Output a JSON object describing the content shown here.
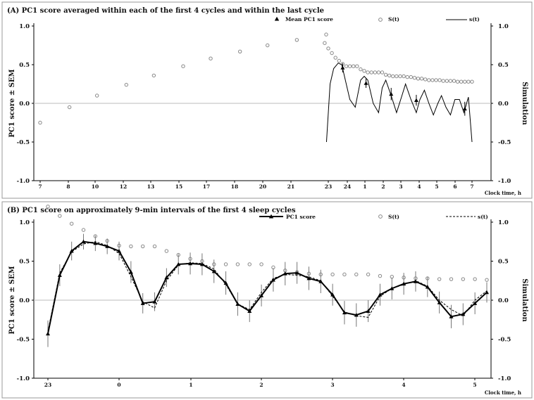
{
  "chart_data": [
    {
      "type": "scatter+line",
      "title": "(A) PC1 score averaged within each of the first 4 cycles and within the last cycle",
      "ylabel": "PC1 score ± SEM",
      "y2label": "Simulation",
      "xlabel": "Clock time, h",
      "ylim": [
        -1.0,
        1.0
      ],
      "y2lim": [
        -1.0,
        1.0
      ],
      "yticks": [
        "-1.0",
        "-0.5",
        "0.0",
        "0.5",
        "1.0"
      ],
      "y2ticks": [
        "-1.0",
        "-0.5",
        "0.0",
        "0.5",
        "1.0"
      ],
      "xticks": [
        "7",
        "8",
        "10",
        "12",
        "13",
        "15",
        "17",
        "18",
        "20",
        "21",
        "23",
        "24",
        "1",
        "2",
        "3",
        "4",
        "5",
        "6",
        "7"
      ],
      "legend": [
        "Mean PC1 score",
        "S(t)",
        "s(t)"
      ],
      "legend_position": "top",
      "series": [
        {
          "name": "S(t)",
          "marker": "circle",
          "x_clock": [
            7,
            8.6,
            10.1,
            11.7,
            13.2,
            14.8,
            16.3,
            17.9,
            19.4,
            21.0,
            22.6,
            22.8,
            23.0,
            23.2,
            23.4,
            23.6,
            23.8,
            24.0,
            24.2,
            24.4,
            24.6,
            24.8,
            25.0,
            25.2,
            25.4,
            25.6,
            25.8,
            26.0,
            26.2,
            26.4,
            26.6,
            26.8,
            27.0,
            27.2,
            27.4,
            27.6,
            27.8,
            28.0,
            28.2,
            28.4,
            28.6,
            28.8,
            29.0,
            29.2,
            29.4,
            29.6,
            29.8,
            30.0,
            30.2,
            30.4,
            30.6,
            30.8,
            31.0
          ],
          "y": [
            -0.25,
            -0.05,
            0.1,
            0.24,
            0.36,
            0.48,
            0.58,
            0.67,
            0.75,
            0.82,
            0.89,
            0.78,
            0.71,
            0.65,
            0.59,
            0.55,
            0.51,
            0.48,
            0.48,
            0.48,
            0.48,
            0.44,
            0.42,
            0.4,
            0.4,
            0.4,
            0.4,
            0.4,
            0.37,
            0.36,
            0.35,
            0.35,
            0.35,
            0.35,
            0.34,
            0.34,
            0.33,
            0.32,
            0.32,
            0.31,
            0.3,
            0.3,
            0.3,
            0.3,
            0.29,
            0.29,
            0.29,
            0.29,
            0.28,
            0.28,
            0.28,
            0.28,
            0.28
          ]
        },
        {
          "name": "s(t)",
          "marker": "none",
          "x_clock": [
            22.9,
            23.1,
            23.3,
            23.55,
            23.75,
            23.95,
            24.2,
            24.5,
            24.8,
            25.0,
            25.2,
            25.5,
            25.8,
            26.0,
            26.2,
            26.5,
            26.8,
            27.1,
            27.3,
            27.6,
            27.9,
            28.1,
            28.35,
            28.6,
            28.85,
            29.1,
            29.3,
            29.55,
            29.8,
            30.05,
            30.3,
            30.55,
            30.8,
            31.0
          ],
          "y": [
            -0.5,
            0.25,
            0.45,
            0.52,
            0.5,
            0.3,
            0.05,
            -0.05,
            0.3,
            0.35,
            0.3,
            0.0,
            -0.12,
            0.2,
            0.3,
            0.1,
            -0.12,
            0.1,
            0.25,
            0.05,
            -0.12,
            0.05,
            0.17,
            0.0,
            -0.15,
            0.0,
            0.1,
            -0.05,
            -0.15,
            0.05,
            0.05,
            -0.12,
            0.08,
            -0.5
          ]
        },
        {
          "name": "Mean PC1 score",
          "marker": "triangle",
          "x_clock": [
            23.8,
            25.1,
            26.5,
            27.9,
            30.6
          ],
          "y": [
            0.46,
            0.26,
            0.12,
            0.04,
            -0.07
          ],
          "sem": [
            0.06,
            0.06,
            0.08,
            0.07,
            0.09
          ]
        }
      ]
    },
    {
      "type": "line",
      "title": "(B) PC1 score on approximately 9-min intervals of the first 4 sleep cycles",
      "ylabel": "PC1 score ± SEM",
      "y2label": "Simulation",
      "xlabel": "Clock time, h",
      "ylim": [
        -1.0,
        1.0
      ],
      "y2lim": [
        -1.0,
        1.0
      ],
      "yticks": [
        "-1.0",
        "-0.5",
        "0.0",
        "0.5",
        "1.0"
      ],
      "y2ticks": [
        "-1.0",
        "-0.5",
        "0.0",
        "0.5",
        "1.0"
      ],
      "xticks": [
        "23",
        "0",
        "1",
        "2",
        "3",
        "4",
        "5"
      ],
      "legend": [
        "PC1 score",
        "S(t)",
        "s(t)"
      ],
      "legend_position": "top",
      "series": [
        {
          "name": "PC1 score",
          "marker": "triangle",
          "y": [
            -0.43,
            0.32,
            0.63,
            0.75,
            0.73,
            0.69,
            0.63,
            0.36,
            -0.04,
            -0.02,
            0.29,
            0.46,
            0.47,
            0.46,
            0.37,
            0.22,
            -0.05,
            -0.14,
            0.06,
            0.26,
            0.34,
            0.35,
            0.28,
            0.24,
            0.07,
            -0.16,
            -0.19,
            -0.14,
            0.07,
            0.15,
            0.21,
            0.24,
            0.17,
            -0.03,
            -0.21,
            -0.18,
            -0.04,
            0.1
          ],
          "sem": [
            0.17,
            0.14,
            0.12,
            0.1,
            0.1,
            0.1,
            0.12,
            0.14,
            0.13,
            0.12,
            0.12,
            0.13,
            0.14,
            0.14,
            0.15,
            0.15,
            0.15,
            0.14,
            0.14,
            0.15,
            0.15,
            0.14,
            0.15,
            0.15,
            0.14,
            0.15,
            0.15,
            0.14,
            0.14,
            0.14,
            0.14,
            0.13,
            0.13,
            0.14,
            0.15,
            0.14,
            0.14,
            0.13
          ]
        },
        {
          "name": "s(t)",
          "marker": "none",
          "y": [
            -0.4,
            0.35,
            0.62,
            0.72,
            0.75,
            0.7,
            0.6,
            0.3,
            -0.02,
            -0.1,
            0.25,
            0.45,
            0.48,
            0.47,
            0.4,
            0.2,
            -0.05,
            -0.12,
            0.1,
            0.28,
            0.33,
            0.32,
            0.3,
            0.25,
            0.05,
            -0.15,
            -0.2,
            -0.22,
            0.05,
            0.15,
            0.2,
            0.25,
            0.18,
            0.0,
            -0.12,
            -0.2,
            0.0,
            0.12
          ]
        },
        {
          "name": "S(t)",
          "marker": "circle",
          "y": [
            1.2,
            1.08,
            0.98,
            0.9,
            0.82,
            0.76,
            0.7,
            0.69,
            0.69,
            0.69,
            0.63,
            0.58,
            0.53,
            0.5,
            0.46,
            0.46,
            0.46,
            0.46,
            0.46,
            0.42,
            0.38,
            0.36,
            0.34,
            0.33,
            0.33,
            0.33,
            0.33,
            0.33,
            0.31,
            0.3,
            0.29,
            0.28,
            0.28,
            0.27,
            0.27,
            0.27,
            0.27,
            0.26
          ]
        }
      ]
    }
  ]
}
